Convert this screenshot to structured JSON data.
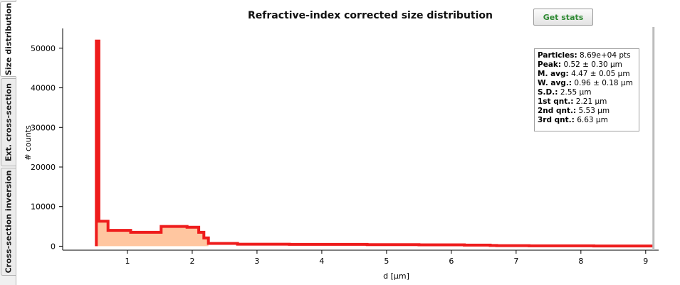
{
  "tabs": [
    {
      "label": "Size distribution",
      "active": true
    },
    {
      "label": "Ext. cross-section",
      "active": false
    },
    {
      "label": "Cross-section inversion",
      "active": false
    }
  ],
  "title": "Refractive-index corrected size distribution",
  "get_stats_label": "Get stats",
  "stats": [
    {
      "key": "Particles:",
      "value": "8.69e+04 pts"
    },
    {
      "key": "Peak:",
      "value": "0.52 ± 0.30 µm"
    },
    {
      "key": "M. avg:",
      "value": "4.47 ± 0.05 µm"
    },
    {
      "key": "W. avg.:",
      "value": "0.96 ± 0.18 µm"
    },
    {
      "key": "S.D.:",
      "value": "2.55 µm"
    },
    {
      "key": "1st qnt.:",
      "value": "2.21 µm"
    },
    {
      "key": "2nd qnt.:",
      "value": "5.53 µm"
    },
    {
      "key": "3rd qnt.:",
      "value": "6.63 µm"
    }
  ],
  "colors": {
    "line": "#ee1c1c",
    "fill": "#ffc6a0",
    "cursor": "#bdbdbd"
  },
  "chart_data": {
    "type": "area",
    "xlabel": "d [µm]",
    "ylabel": "# counts",
    "xticks": [
      1,
      2,
      3,
      4,
      5,
      6,
      7,
      8,
      9
    ],
    "yticks": [
      0,
      10000,
      20000,
      30000,
      40000,
      50000
    ],
    "xlim": [
      0.0,
      9.2
    ],
    "ylim": [
      -1000,
      55000
    ],
    "fill_until_x": 2.25,
    "cursor_x": 9.12,
    "points": [
      [
        0.52,
        0
      ],
      [
        0.52,
        51800
      ],
      [
        0.56,
        51800
      ],
      [
        0.56,
        6300
      ],
      [
        0.7,
        6300
      ],
      [
        0.7,
        4000
      ],
      [
        1.05,
        4000
      ],
      [
        1.05,
        3500
      ],
      [
        1.52,
        3500
      ],
      [
        1.52,
        5000
      ],
      [
        1.92,
        5000
      ],
      [
        1.92,
        4800
      ],
      [
        2.1,
        4800
      ],
      [
        2.1,
        3500
      ],
      [
        2.18,
        3500
      ],
      [
        2.18,
        2100
      ],
      [
        2.25,
        2100
      ],
      [
        2.25,
        700
      ],
      [
        2.7,
        700
      ],
      [
        2.7,
        500
      ],
      [
        3.5,
        500
      ],
      [
        3.5,
        450
      ],
      [
        4.7,
        450
      ],
      [
        4.7,
        400
      ],
      [
        5.5,
        400
      ],
      [
        5.5,
        350
      ],
      [
        6.2,
        350
      ],
      [
        6.2,
        280
      ],
      [
        6.6,
        280
      ],
      [
        6.6,
        180
      ],
      [
        6.7,
        180
      ],
      [
        6.7,
        150
      ],
      [
        7.2,
        150
      ],
      [
        7.2,
        100
      ],
      [
        8.2,
        100
      ],
      [
        8.2,
        50
      ],
      [
        9.12,
        50
      ]
    ]
  }
}
